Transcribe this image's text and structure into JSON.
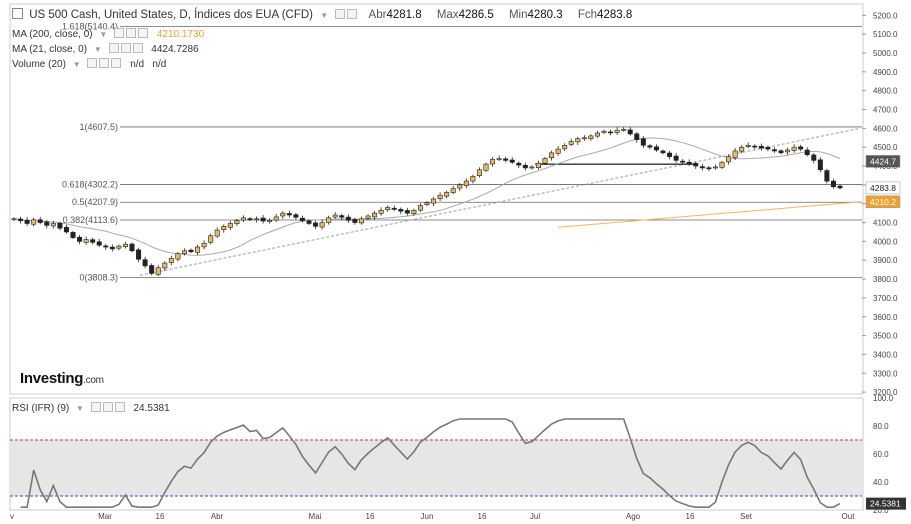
{
  "header": {
    "title": "US 500 Cash, United States, D, Índices dos EUA (CFD)",
    "open_label": "Abr",
    "open": "4281.8",
    "high_label": "Max",
    "high": "4286.5",
    "low_label": "Min",
    "low": "4280.3",
    "close_label": "Fch",
    "close": "4283.8"
  },
  "indicators": [
    {
      "label": "MA (200, close, 0)",
      "value": "4210.1730",
      "color": "#f0a030"
    },
    {
      "label": "MA (21, close, 0)",
      "value": "4424.7286",
      "color": "#333333"
    },
    {
      "label": "Volume (20)",
      "value": "n/d   n/d",
      "color": "#333333"
    }
  ],
  "logo": {
    "brand": "Investing",
    "suffix": ".com"
  },
  "rsi": {
    "label": "RSI (IFR) (9)",
    "value": "24.5381"
  },
  "chart_data": [
    {
      "type": "candlestick",
      "title": "US 500 Cash, United States, D",
      "y_axis_ticks": [
        3200,
        3300,
        3400,
        3500,
        3600,
        3700,
        3800,
        3900,
        4000,
        4100,
        4200,
        4300,
        4400,
        4500,
        4600,
        4700,
        4800,
        4900,
        5000,
        5100,
        5200
      ],
      "ylim": [
        3190,
        5260
      ],
      "x_axis_labels": [
        "v",
        "Mar",
        "16",
        "Abr",
        "Mai",
        "16",
        "Jun",
        "16",
        "Jul",
        "Ago",
        "16",
        "Set",
        "Out"
      ],
      "fibonacci_levels": [
        {
          "label": "1.618(5140.4)",
          "value": 5140.4
        },
        {
          "label": "1(4607.5)",
          "value": 4607.5
        },
        {
          "label": "0.618(4302.2)",
          "value": 4302.2
        },
        {
          "label": "0.5(4207.9)",
          "value": 4207.9
        },
        {
          "label": "0.382(4113.6)",
          "value": 4113.6
        },
        {
          "label": "0(3808.3)",
          "value": 3808.3
        }
      ],
      "price_tags": [
        {
          "value": "4424.7",
          "bg": "#555555"
        },
        {
          "value": "4283.8",
          "bg": "#ffffff"
        },
        {
          "value": "4210.2",
          "bg": "#f0a030"
        }
      ],
      "close_series": [
        4120,
        4110,
        4095,
        4115,
        4100,
        4085,
        4095,
        4070,
        4050,
        4020,
        4000,
        4010,
        3995,
        3980,
        3970,
        3960,
        3975,
        3985,
        3950,
        3905,
        3870,
        3830,
        3860,
        3885,
        3910,
        3935,
        3950,
        3945,
        3970,
        3990,
        4030,
        4060,
        4080,
        4095,
        4110,
        4125,
        4115,
        4120,
        4108,
        4112,
        4130,
        4150,
        4140,
        4128,
        4110,
        4095,
        4080,
        4100,
        4125,
        4140,
        4128,
        4112,
        4100,
        4120,
        4135,
        4150,
        4165,
        4180,
        4170,
        4160,
        4150,
        4165,
        4190,
        4205,
        4225,
        4245,
        4260,
        4280,
        4300,
        4320,
        4345,
        4380,
        4410,
        4435,
        4440,
        4430,
        4420,
        4405,
        4390,
        4395,
        4415,
        4440,
        4470,
        4490,
        4510,
        4530,
        4545,
        4550,
        4560,
        4575,
        4585,
        4578,
        4590,
        4595,
        4570,
        4540,
        4510,
        4500,
        4485,
        4470,
        4450,
        4430,
        4420,
        4410,
        4400,
        4390,
        4385,
        4395,
        4420,
        4450,
        4480,
        4500,
        4510,
        4505,
        4495,
        4490,
        4480,
        4470,
        4485,
        4500,
        4490,
        4460,
        4430,
        4380,
        4320,
        4290,
        4283.8
      ],
      "ma200_series_approx": [
        {
          "x": "Aug start",
          "y": 4000
        },
        {
          "x": "end",
          "y": 4210.17
        }
      ],
      "ma21_last": 4424.73
    },
    {
      "type": "line",
      "title": "RSI (IFR) (9)",
      "y_axis_ticks": [
        20.0,
        40.0,
        60.0,
        80.0,
        100.0
      ],
      "ylim": [
        20,
        100
      ],
      "overbought": 70,
      "oversold": 30,
      "last_value": 24.5381
    }
  ],
  "colors": {
    "bull": "#e5b964",
    "bear": "#222222",
    "fib": "#666666",
    "ma200": "#f5b561",
    "ma21": "#aaaaaa",
    "trend": "#999999",
    "rsi_line": "#777777",
    "rsi_band": "#e6e6e6",
    "ob_line": "#cc3333",
    "os_line": "#3344cc"
  }
}
